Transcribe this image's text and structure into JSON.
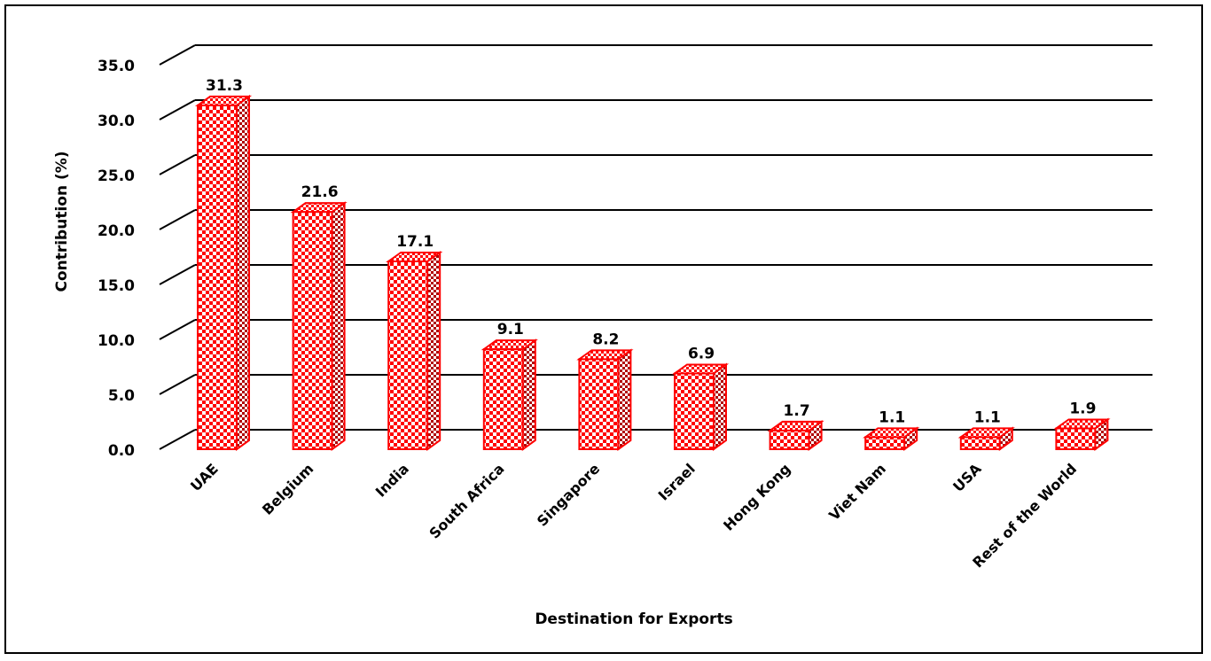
{
  "chart_data": {
    "type": "bar",
    "title": "",
    "xlabel": "Destination for Exports",
    "ylabel": "Contribution (%)",
    "categories": [
      "UAE",
      "Belgium",
      "India",
      "South Africa",
      "Singapore",
      "Israel",
      "Hong Kong",
      "Viet Nam",
      "USA",
      "Rest of the World"
    ],
    "values": [
      31.3,
      21.6,
      17.1,
      9.1,
      8.2,
      6.9,
      1.7,
      1.1,
      1.1,
      1.9
    ],
    "value_labels": [
      "31.3",
      "21.6",
      "17.1",
      "9.1",
      "8.2",
      "6.9",
      "1.7",
      "1.1",
      "1.1",
      "1.9"
    ],
    "ylim": [
      0,
      35
    ],
    "yticks": [
      "0.0",
      "5.0",
      "10.0",
      "15.0",
      "20.0",
      "25.0",
      "30.0",
      "35.0"
    ],
    "grid": true,
    "style": "3d-column",
    "colors": {
      "bar_stroke": "#ff0000",
      "bar_pattern": "#ff0000",
      "grid": "#000000"
    }
  }
}
